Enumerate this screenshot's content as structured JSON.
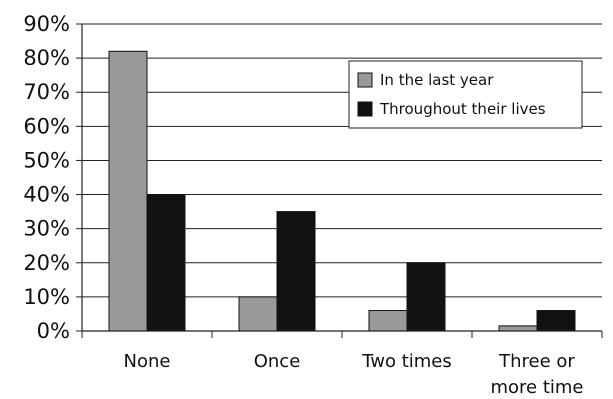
{
  "chart_data": {
    "type": "bar",
    "categories": [
      [
        "None"
      ],
      [
        "Once"
      ],
      [
        "Two times"
      ],
      [
        "Three or",
        "more time"
      ]
    ],
    "series": [
      {
        "name": "In the last year",
        "color": "#999999",
        "values": [
          82,
          10,
          6,
          1.5
        ]
      },
      {
        "name": "Throughout their lives",
        "color": "#111111",
        "values": [
          40,
          35,
          20,
          6
        ]
      }
    ],
    "ylim": [
      0,
      90
    ],
    "yticks": [
      0,
      10,
      20,
      30,
      40,
      50,
      60,
      70,
      80,
      90
    ],
    "ytick_labels": [
      "0%",
      "10%",
      "20%",
      "30%",
      "40%",
      "50%",
      "60%",
      "70%",
      "80%",
      "90%"
    ],
    "grid": true,
    "legend_position": "top-right"
  }
}
